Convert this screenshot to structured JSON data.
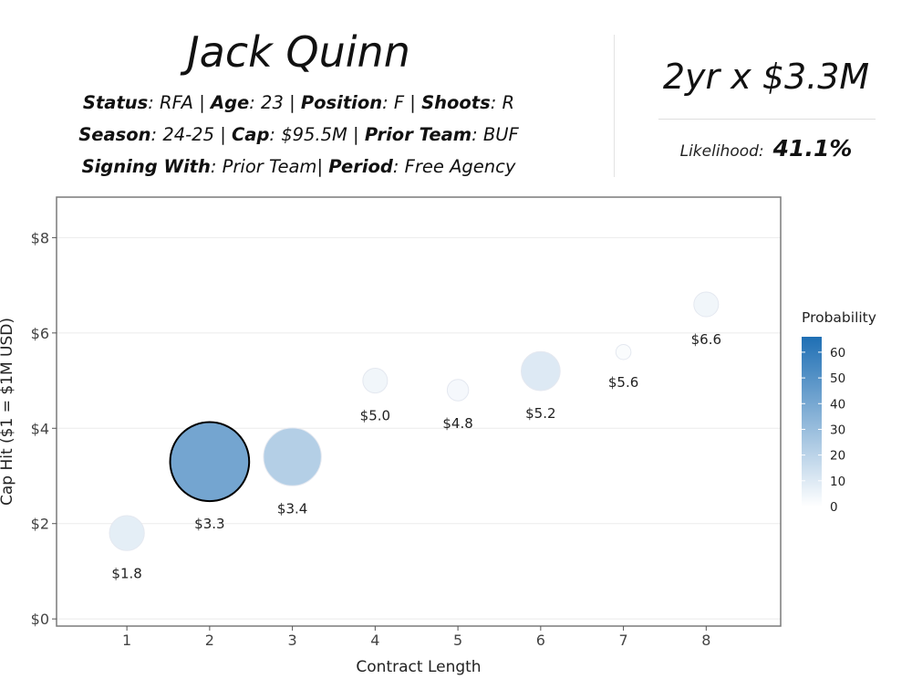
{
  "player": {
    "name": "Jack Quinn",
    "status_label": "Status",
    "status": "RFA",
    "age_label": "Age",
    "age": "23",
    "position_label": "Position",
    "position": "F",
    "shoots_label": "Shoots",
    "shoots": "R",
    "season_label": "Season",
    "season": "24-25",
    "cap_label": "Cap",
    "cap": "$95.5M",
    "prior_team_label": "Prior Team",
    "prior_team": "BUF",
    "signing_with_label": "Signing With",
    "signing_with": "Prior Team",
    "period_label": "Period",
    "period": "Free Agency"
  },
  "prediction": {
    "contract": "2yr x $3.3M",
    "likelihood_label": "Likelihood:",
    "likelihood_value": "41.1%"
  },
  "chart_data": {
    "type": "scatter",
    "xlabel": "Contract Length",
    "ylabel": "Cap Hit ($1 = $1M USD)",
    "xlim": [
      0.15,
      8.9
    ],
    "ylim": [
      -0.15,
      8.85
    ],
    "x_ticks": [
      1,
      2,
      3,
      4,
      5,
      6,
      7,
      8
    ],
    "y_ticks": [
      0,
      2,
      4,
      6,
      8
    ],
    "y_tick_labels": [
      "$0",
      "$2",
      "$4",
      "$6",
      "$8"
    ],
    "grid": true,
    "points": [
      {
        "x": 1,
        "y": 1.8,
        "label": "$1.8",
        "probability": 8
      },
      {
        "x": 2,
        "y": 3.3,
        "label": "$3.3",
        "probability": 41.1,
        "highlighted": true
      },
      {
        "x": 3,
        "y": 3.4,
        "label": "$3.4",
        "probability": 22
      },
      {
        "x": 4,
        "y": 5.0,
        "label": "$5.0",
        "probability": 4
      },
      {
        "x": 5,
        "y": 4.8,
        "label": "$4.8",
        "probability": 3
      },
      {
        "x": 6,
        "y": 5.2,
        "label": "$5.2",
        "probability": 10
      },
      {
        "x": 7,
        "y": 5.6,
        "label": "$5.6",
        "probability": 1.5
      },
      {
        "x": 8,
        "y": 6.6,
        "label": "$6.6",
        "probability": 4
      }
    ],
    "legend": {
      "title": "Probability",
      "position": "right",
      "min": 0,
      "max": 66,
      "ticks": [
        0,
        10,
        20,
        30,
        40,
        50,
        60
      ],
      "color_low": "#ffffff",
      "color_high": "#1f6fb4"
    }
  }
}
